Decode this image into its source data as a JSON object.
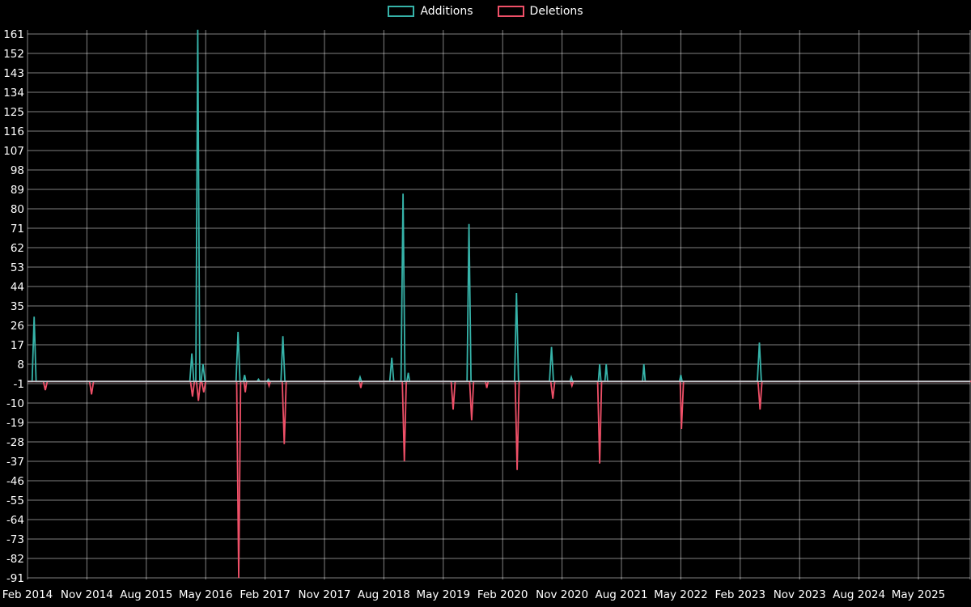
{
  "page": {
    "background": "#000000",
    "text_color": "#ffffff"
  },
  "chart_data": {
    "type": "line",
    "title": "",
    "background": "#000000",
    "grid_color": "rgba(255,255,255,0.5)",
    "text_color": "#ffffff",
    "baseline_color": "#c3c7cc",
    "legend_position": "top-center",
    "x_axis": {
      "label": "",
      "tick_labels": [
        "Feb 2014",
        "Nov 2014",
        "Aug 2015",
        "May 2016",
        "Feb 2017",
        "Nov 2017",
        "Aug 2018",
        "May 2019",
        "Feb 2020",
        "Nov 2020",
        "Aug 2021",
        "May 2022",
        "Feb 2023",
        "Nov 2023",
        "Aug 2024",
        "May 2025"
      ],
      "tick_months": [
        0,
        9,
        18,
        27,
        36,
        45,
        54,
        63,
        72,
        81,
        90,
        99,
        108,
        117,
        126,
        135
      ],
      "unit": "months_since_feb_2014",
      "max_month": 143
    },
    "y_axis": {
      "label": "",
      "min": -91,
      "max": 161,
      "ticks": [
        161,
        152,
        143,
        134,
        125,
        116,
        107,
        98,
        89,
        80,
        71,
        62,
        53,
        44,
        35,
        26,
        17,
        8,
        -1,
        -10,
        -19,
        -28,
        -37,
        -46,
        -55,
        -64,
        -73,
        -82,
        -91
      ]
    },
    "series": [
      {
        "name": "Additions",
        "color": "#36b3a9",
        "points": [
          [
            0,
            0
          ],
          [
            0.7,
            0
          ],
          [
            1.0,
            30
          ],
          [
            1.3,
            0
          ],
          [
            24.6,
            0
          ],
          [
            24.9,
            13
          ],
          [
            25.2,
            0
          ],
          [
            25.5,
            0
          ],
          [
            25.8,
            163
          ],
          [
            26.1,
            0
          ],
          [
            26.3,
            0
          ],
          [
            26.6,
            8
          ],
          [
            26.9,
            0
          ],
          [
            31.6,
            0
          ],
          [
            31.9,
            23
          ],
          [
            32.2,
            0
          ],
          [
            32.7,
            0
          ],
          [
            32.9,
            3
          ],
          [
            33.1,
            0
          ],
          [
            34.8,
            0
          ],
          [
            35.0,
            1
          ],
          [
            35.2,
            0
          ],
          [
            36.3,
            0
          ],
          [
            36.5,
            1
          ],
          [
            36.7,
            0
          ],
          [
            38.4,
            0
          ],
          [
            38.7,
            21
          ],
          [
            39.0,
            0
          ],
          [
            50.2,
            0
          ],
          [
            50.4,
            2
          ],
          [
            50.6,
            0
          ],
          [
            54.9,
            0
          ],
          [
            55.2,
            11
          ],
          [
            55.5,
            0
          ],
          [
            56.6,
            0
          ],
          [
            56.9,
            87
          ],
          [
            57.2,
            0
          ],
          [
            57.5,
            0
          ],
          [
            57.7,
            4
          ],
          [
            57.9,
            0
          ],
          [
            66.6,
            0
          ],
          [
            66.9,
            73
          ],
          [
            67.2,
            0
          ],
          [
            73.8,
            0
          ],
          [
            74.1,
            41
          ],
          [
            74.4,
            0
          ],
          [
            79.1,
            0
          ],
          [
            79.4,
            16
          ],
          [
            79.7,
            0
          ],
          [
            82.2,
            0
          ],
          [
            82.4,
            2
          ],
          [
            82.6,
            0
          ],
          [
            86.5,
            0
          ],
          [
            86.7,
            8
          ],
          [
            86.9,
            0
          ],
          [
            87.5,
            0
          ],
          [
            87.7,
            8
          ],
          [
            87.9,
            0
          ],
          [
            93.2,
            0
          ],
          [
            93.4,
            8
          ],
          [
            93.6,
            0
          ],
          [
            98.8,
            0
          ],
          [
            99.0,
            3
          ],
          [
            99.2,
            0
          ],
          [
            110.6,
            0
          ],
          [
            110.9,
            18
          ],
          [
            111.2,
            0
          ],
          [
            143,
            0
          ]
        ]
      },
      {
        "name": "Deletions",
        "color": "#ef5068",
        "points": [
          [
            0,
            0
          ],
          [
            2.4,
            0
          ],
          [
            2.7,
            -4
          ],
          [
            3.0,
            0
          ],
          [
            9.4,
            0
          ],
          [
            9.7,
            -6
          ],
          [
            10.0,
            0
          ],
          [
            24.7,
            0
          ],
          [
            25.0,
            -7
          ],
          [
            25.3,
            0
          ],
          [
            25.6,
            0
          ],
          [
            25.9,
            -9
          ],
          [
            26.2,
            0
          ],
          [
            26.4,
            0
          ],
          [
            26.7,
            -5
          ],
          [
            27.0,
            0
          ],
          [
            31.7,
            0
          ],
          [
            32.0,
            -91
          ],
          [
            32.3,
            0
          ],
          [
            32.8,
            0
          ],
          [
            33.0,
            -5
          ],
          [
            33.2,
            0
          ],
          [
            36.4,
            0
          ],
          [
            36.6,
            -2
          ],
          [
            36.8,
            0
          ],
          [
            38.6,
            0
          ],
          [
            38.9,
            -29
          ],
          [
            39.2,
            0
          ],
          [
            50.3,
            0
          ],
          [
            50.5,
            -3
          ],
          [
            50.7,
            0
          ],
          [
            56.8,
            0
          ],
          [
            57.1,
            -37
          ],
          [
            57.4,
            0
          ],
          [
            64.2,
            0
          ],
          [
            64.5,
            -13
          ],
          [
            64.8,
            0
          ],
          [
            67.0,
            0
          ],
          [
            67.3,
            -18
          ],
          [
            67.6,
            0
          ],
          [
            69.4,
            0
          ],
          [
            69.6,
            -3
          ],
          [
            69.8,
            0
          ],
          [
            73.9,
            0
          ],
          [
            74.2,
            -41
          ],
          [
            74.5,
            0
          ],
          [
            79.3,
            0
          ],
          [
            79.6,
            -8
          ],
          [
            79.9,
            0
          ],
          [
            82.3,
            0
          ],
          [
            82.5,
            -2
          ],
          [
            82.7,
            0
          ],
          [
            86.4,
            0
          ],
          [
            86.7,
            -38
          ],
          [
            87.0,
            0
          ],
          [
            98.9,
            0
          ],
          [
            99.1,
            -22
          ],
          [
            99.4,
            0
          ],
          [
            110.7,
            0
          ],
          [
            111.0,
            -13
          ],
          [
            111.3,
            0
          ],
          [
            143,
            0
          ]
        ]
      }
    ]
  }
}
